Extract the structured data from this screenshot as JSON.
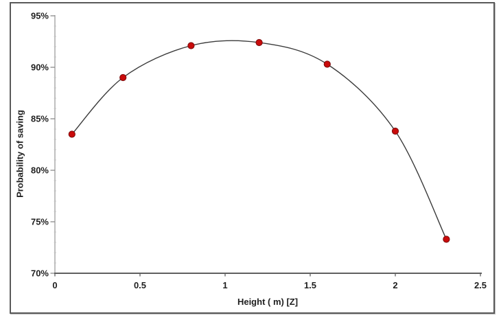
{
  "figure": {
    "background": "#ffffff",
    "frame_border_color": "#595959"
  },
  "chart_data": {
    "type": "scatter",
    "title": "",
    "xlabel": "Height ( m) [Z]",
    "ylabel": "Probability of saving",
    "series": [
      {
        "name": "probability-of-saving",
        "x": [
          0.1,
          0.4,
          0.8,
          1.2,
          1.6,
          2.0,
          2.3
        ],
        "y_percent": [
          83.5,
          89.0,
          92.1,
          92.4,
          90.3,
          83.8,
          73.3
        ]
      }
    ],
    "fit_line": "smooth curve through all points",
    "xlim": [
      0,
      2.5
    ],
    "ylim_percent": [
      70,
      95
    ],
    "x_ticks": [
      0,
      0.5,
      1,
      1.5,
      2,
      2.5
    ],
    "x_tick_labels": [
      "0",
      "0.5",
      "1",
      "1.5",
      "2",
      "2.5"
    ],
    "y_ticks": [
      70,
      75,
      80,
      85,
      90,
      95
    ],
    "y_tick_labels": [
      "70%",
      "75%",
      "80%",
      "85%",
      "90%",
      "95%"
    ],
    "y_minor_tick_step": 1,
    "grid": false,
    "legend": false,
    "colors": {
      "marker_fill": "#c90b0b",
      "marker_edge": "#7a0c0c",
      "curve_line": "#3a3a3a",
      "y_axis_line": "#bfbfbf",
      "y_major_tick": "#8a8a8a",
      "y_minor_tick": "#c9c9c9",
      "x_axis_line": "#5f5f5f",
      "tick_label_text": "#1f1f1f"
    }
  }
}
